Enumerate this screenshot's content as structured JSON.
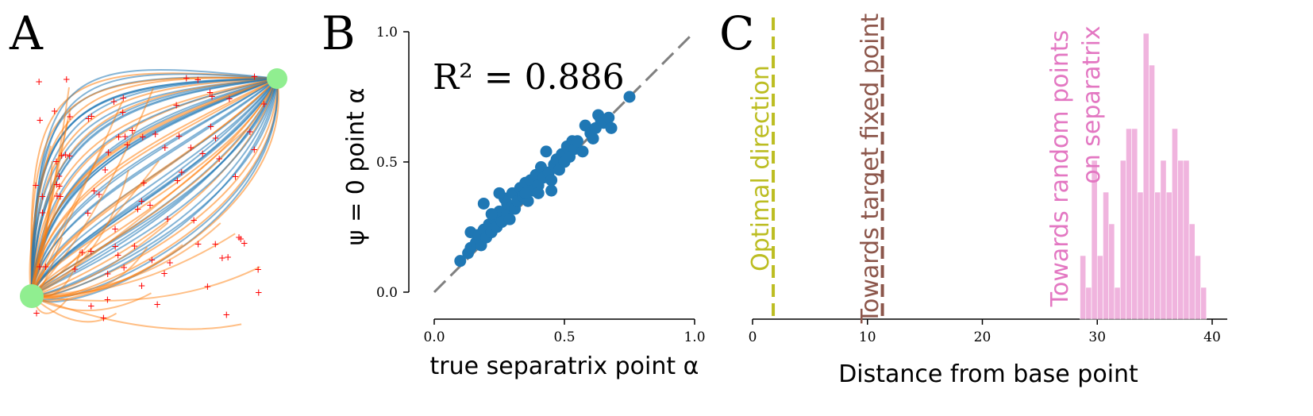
{
  "panels": {
    "a": "A",
    "b": "B",
    "c": "C"
  },
  "colors": {
    "blue": "#1f77b4",
    "orange": "#ff7f0e",
    "green": "#90ee90",
    "red": "#ff0000",
    "olive": "#bcbd22",
    "brown": "#8c564b",
    "pink": "#e377c2",
    "gray": "#808080"
  },
  "chart_data": [
    {
      "panel": "B",
      "type": "scatter",
      "xlabel": "true separatrix point α",
      "ylabel": "ψ = 0 point α",
      "annotation": "R² = 0.886",
      "xlim": [
        0,
        1
      ],
      "ylim": [
        0,
        1
      ],
      "xticks": [
        "0.0",
        "0.5",
        "1.0"
      ],
      "yticks": [
        "0.0",
        "0.5",
        "1.0"
      ],
      "identity_line": true,
      "points": [
        [
          0.1,
          0.12
        ],
        [
          0.13,
          0.15
        ],
        [
          0.14,
          0.17
        ],
        [
          0.14,
          0.23
        ],
        [
          0.16,
          0.19
        ],
        [
          0.17,
          0.22
        ],
        [
          0.18,
          0.18
        ],
        [
          0.19,
          0.24
        ],
        [
          0.2,
          0.21
        ],
        [
          0.21,
          0.26
        ],
        [
          0.22,
          0.23
        ],
        [
          0.23,
          0.28
        ],
        [
          0.24,
          0.25
        ],
        [
          0.25,
          0.31
        ],
        [
          0.26,
          0.27
        ],
        [
          0.27,
          0.36
        ],
        [
          0.28,
          0.3
        ],
        [
          0.28,
          0.34
        ],
        [
          0.29,
          0.28
        ],
        [
          0.3,
          0.33
        ],
        [
          0.3,
          0.38
        ],
        [
          0.31,
          0.32
        ],
        [
          0.32,
          0.35
        ],
        [
          0.33,
          0.4
        ],
        [
          0.34,
          0.37
        ],
        [
          0.35,
          0.42
        ],
        [
          0.36,
          0.35
        ],
        [
          0.37,
          0.43
        ],
        [
          0.38,
          0.39
        ],
        [
          0.39,
          0.45
        ],
        [
          0.4,
          0.41
        ],
        [
          0.41,
          0.48
        ],
        [
          0.42,
          0.44
        ],
        [
          0.43,
          0.54
        ],
        [
          0.44,
          0.46
        ],
        [
          0.45,
          0.43
        ],
        [
          0.46,
          0.49
        ],
        [
          0.47,
          0.51
        ],
        [
          0.48,
          0.47
        ],
        [
          0.49,
          0.53
        ],
        [
          0.5,
          0.5
        ],
        [
          0.51,
          0.56
        ],
        [
          0.52,
          0.52
        ],
        [
          0.53,
          0.58
        ],
        [
          0.54,
          0.55
        ],
        [
          0.55,
          0.58
        ],
        [
          0.57,
          0.54
        ],
        [
          0.58,
          0.64
        ],
        [
          0.6,
          0.61
        ],
        [
          0.61,
          0.59
        ],
        [
          0.62,
          0.63
        ],
        [
          0.63,
          0.68
        ],
        [
          0.64,
          0.66
        ],
        [
          0.65,
          0.65
        ],
        [
          0.67,
          0.67
        ],
        [
          0.68,
          0.63
        ],
        [
          0.75,
          0.75
        ],
        [
          0.19,
          0.34
        ],
        [
          0.22,
          0.3
        ],
        [
          0.25,
          0.38
        ],
        [
          0.35,
          0.38
        ],
        [
          0.4,
          0.38
        ],
        [
          0.45,
          0.39
        ]
      ]
    },
    {
      "panel": "C",
      "type": "bar",
      "xlabel": "Distance from base point",
      "xlim": [
        0,
        41
      ],
      "xticks": [
        "0",
        "10",
        "20",
        "30",
        "40"
      ],
      "bin_width": 0.5,
      "histogram_bins": [
        [
          28.5,
          2
        ],
        [
          29.0,
          1
        ],
        [
          29.5,
          5
        ],
        [
          30.0,
          2
        ],
        [
          30.5,
          4
        ],
        [
          31.0,
          3
        ],
        [
          31.5,
          1
        ],
        [
          32.0,
          5
        ],
        [
          32.5,
          6
        ],
        [
          33.0,
          6
        ],
        [
          33.5,
          4
        ],
        [
          34.0,
          9
        ],
        [
          34.5,
          8
        ],
        [
          35.0,
          4
        ],
        [
          35.5,
          5
        ],
        [
          36.0,
          4
        ],
        [
          36.5,
          6
        ],
        [
          37.0,
          5
        ],
        [
          37.5,
          5
        ],
        [
          38.0,
          3
        ],
        [
          38.5,
          2
        ],
        [
          39.0,
          1
        ]
      ],
      "histogram_max": 9,
      "vlines": [
        {
          "x": 1.8,
          "label": "Optimal direction",
          "color": "#bcbd22"
        },
        {
          "x": 11.3,
          "label": "Towards target fixed point",
          "color": "#8c564b"
        }
      ],
      "histogram_label": [
        "Towards random points",
        "on separatrix"
      ],
      "histogram_color": "#e377c2"
    }
  ]
}
